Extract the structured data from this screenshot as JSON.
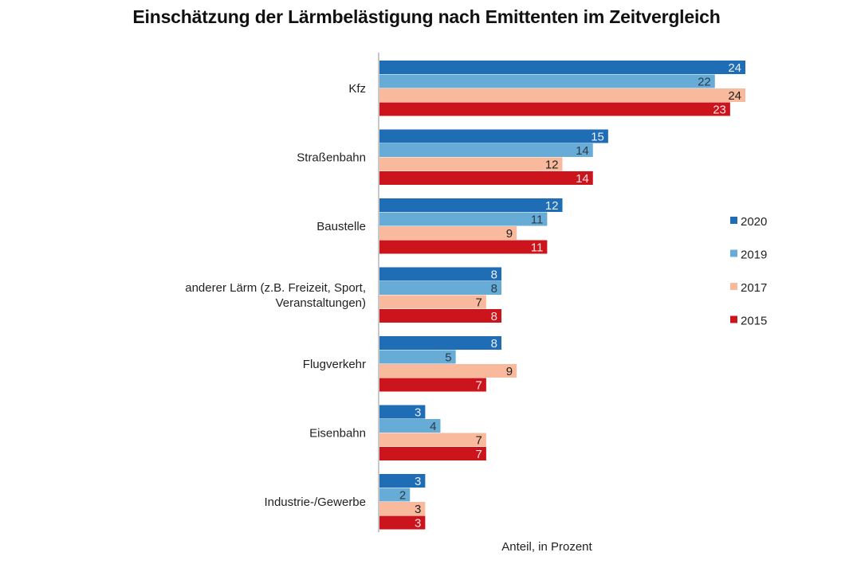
{
  "chart_data": {
    "type": "bar",
    "orientation": "horizontal",
    "title": "Einschätzung der Lärmbelästigung nach Emittenten im Zeitvergleich",
    "xlabel": "Anteil, in Prozent",
    "ylabel": "",
    "xlim": [
      0,
      24
    ],
    "grid": false,
    "legend_position": "right",
    "categories": [
      [
        "Kfz"
      ],
      [
        "Straßenbahn"
      ],
      [
        "Baustelle"
      ],
      [
        "anderer Lärm (z.B. Freizeit, Sport,",
        "Veranstaltungen)"
      ],
      [
        "Flugverkehr"
      ],
      [
        "Eisenbahn"
      ],
      [
        "Industrie-/Gewerbe"
      ]
    ],
    "series": [
      {
        "name": "2020",
        "color": "#1f6db5",
        "label_color": "#e8f1fb",
        "values": [
          24,
          15,
          12,
          8,
          8,
          3,
          3
        ]
      },
      {
        "name": "2019",
        "color": "#67acd6",
        "label_color": "#2b3a4a",
        "values": [
          22,
          14,
          11,
          8,
          5,
          4,
          2
        ]
      },
      {
        "name": "2017",
        "color": "#f9b99c",
        "label_color": "#1e1e1e",
        "values": [
          24,
          12,
          9,
          7,
          9,
          7,
          3
        ]
      },
      {
        "name": "2015",
        "color": "#cc141d",
        "label_color": "#fbe3e3",
        "values": [
          23,
          14,
          11,
          8,
          7,
          7,
          3
        ]
      }
    ]
  }
}
